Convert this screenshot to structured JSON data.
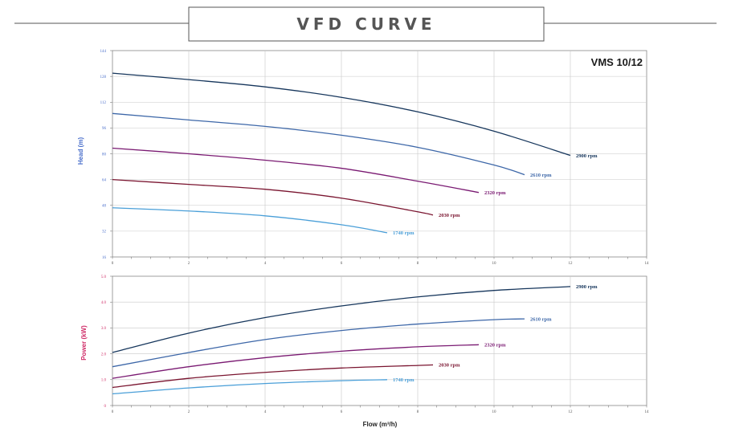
{
  "title": "VFD CURVE",
  "model": "VMS 10/12",
  "colors": {
    "border": "#888888",
    "grid": "#c8c8c8",
    "head_label": "#4a6fcb",
    "power_label": "#d0306a",
    "head_ticks": "#4a6fcb",
    "power_ticks": "#d0306a"
  },
  "chart_data": [
    {
      "type": "line",
      "name": "head",
      "ylabel": "Head (m)",
      "xlabel": "",
      "xlim": [
        0,
        14
      ],
      "ylim": [
        16,
        144
      ],
      "x_ticks": [
        "0",
        "2",
        "4",
        "6",
        "8",
        "10",
        "12",
        "14"
      ],
      "y_ticks": [
        "16",
        "32",
        "48",
        "64",
        "80",
        "96",
        "112",
        "128",
        "144"
      ],
      "series": [
        {
          "name": "2900 rpm",
          "label": "2900 rpm",
          "color": "#16365c",
          "x": [
            0,
            2,
            4,
            6,
            8,
            10,
            12
          ],
          "y": [
            130,
            126,
            121.5,
            115,
            106,
            94,
            79
          ]
        },
        {
          "name": "2610 rpm",
          "label": "2610 rpm",
          "color": "#3d67a8",
          "x": [
            0,
            2,
            4,
            6,
            8,
            10,
            10.8
          ],
          "y": [
            105,
            101,
            97,
            91.5,
            84,
            73,
            67
          ]
        },
        {
          "name": "2320 rpm",
          "label": "2320 rpm",
          "color": "#7a1a72",
          "x": [
            0,
            2,
            4,
            6,
            8,
            9.6
          ],
          "y": [
            83.5,
            80,
            76,
            71,
            63,
            56
          ]
        },
        {
          "name": "2030 rpm",
          "label": "2030 rpm",
          "color": "#7a1530",
          "x": [
            0,
            2,
            4,
            6,
            8,
            8.4
          ],
          "y": [
            64,
            61,
            58,
            52.5,
            44,
            42
          ]
        },
        {
          "name": "1740 rpm",
          "label": "1740 rpm",
          "color": "#4a9fd8",
          "x": [
            0,
            2,
            4,
            6,
            7.2
          ],
          "y": [
            46.5,
            44.5,
            41.5,
            36,
            31
          ]
        }
      ]
    },
    {
      "type": "line",
      "name": "power",
      "ylabel": "Power (kW)",
      "xlabel": "Flow (m³/h)",
      "xlim": [
        0,
        14
      ],
      "ylim": [
        0,
        5
      ],
      "x_ticks": [
        "0",
        "2",
        "4",
        "6",
        "8",
        "10",
        "12",
        "14"
      ],
      "y_ticks": [
        "0",
        "1.0",
        "2.0",
        "3.0",
        "4.0",
        "5.0"
      ],
      "series": [
        {
          "name": "2900 rpm",
          "label": "2900 rpm",
          "color": "#16365c",
          "x": [
            0,
            2,
            4,
            6,
            8,
            10,
            12
          ],
          "y": [
            2.05,
            2.8,
            3.4,
            3.85,
            4.2,
            4.45,
            4.6
          ]
        },
        {
          "name": "2610 rpm",
          "label": "2610 rpm",
          "color": "#3d67a8",
          "x": [
            0,
            2,
            4,
            6,
            8,
            10,
            10.8
          ],
          "y": [
            1.5,
            2.05,
            2.55,
            2.9,
            3.15,
            3.32,
            3.35
          ]
        },
        {
          "name": "2320 rpm",
          "label": "2320 rpm",
          "color": "#7a1a72",
          "x": [
            0,
            2,
            4,
            6,
            8,
            9.6
          ],
          "y": [
            1.05,
            1.5,
            1.85,
            2.1,
            2.27,
            2.35
          ]
        },
        {
          "name": "2030 rpm",
          "label": "2030 rpm",
          "color": "#7a1530",
          "x": [
            0,
            2,
            4,
            6,
            8,
            8.4
          ],
          "y": [
            0.7,
            1.05,
            1.28,
            1.45,
            1.55,
            1.57
          ]
        },
        {
          "name": "1740 rpm",
          "label": "1740 rpm",
          "color": "#4a9fd8",
          "x": [
            0,
            2,
            4,
            6,
            7.2
          ],
          "y": [
            0.45,
            0.68,
            0.85,
            0.96,
            1.0
          ]
        }
      ]
    }
  ]
}
